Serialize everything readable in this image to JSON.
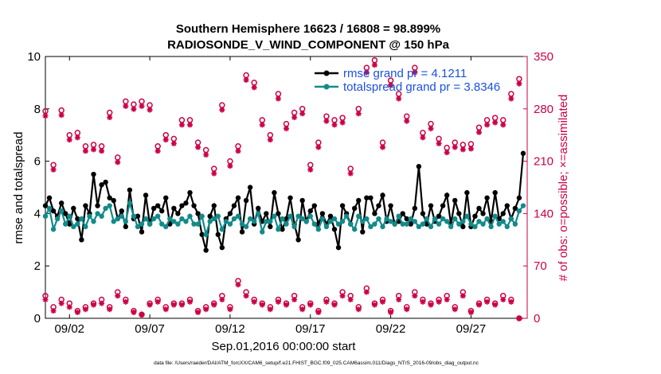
{
  "chart_data": {
    "type": "line",
    "title": "Southern Hemisphere 16623 / 16808 = 98.899%",
    "subtitle": "RADIOSONDE_V_WIND_COMPONENT @ 150 hPa",
    "xlabel": "Sep.01,2016 00:00:00 start",
    "ylabel": "rmse and totalspread",
    "ylabel_right": "# of obs: o=possible; ×=assimilated",
    "footer": "data file: /Users/raeder/DAI/ATM_forcXX/CAM6_setup/f.e21.FHIST_BGC.f09_025.CAM6assim.011/Diags_NTrS_2016-09/obs_diag_output.nc",
    "xlim": [
      0.5,
      30.5
    ],
    "ylim": [
      0,
      10
    ],
    "ylim_right": [
      0,
      350
    ],
    "x_ticks": [
      {
        "value": 2,
        "label": "09/02"
      },
      {
        "value": 7,
        "label": "09/07"
      },
      {
        "value": 12,
        "label": "09/12"
      },
      {
        "value": 17,
        "label": "09/17"
      },
      {
        "value": 22,
        "label": "09/22"
      },
      {
        "value": 27,
        "label": "09/27"
      }
    ],
    "y_ticks": [
      "0",
      "2",
      "4",
      "6",
      "8",
      "10"
    ],
    "y_ticks_right": [
      "0",
      "70",
      "140",
      "210",
      "280",
      "350"
    ],
    "legend": [
      {
        "label": "rmse grand pr = 4.1211",
        "color": "#000000"
      },
      {
        "label": "totalspread grand pr = 3.8346",
        "color": "#138a8a"
      }
    ],
    "series": [
      {
        "name": "rmse",
        "color": "#000000",
        "x": [
          0.5,
          0.75,
          1,
          1.25,
          1.5,
          1.75,
          2,
          2.25,
          2.5,
          2.75,
          3,
          3.25,
          3.5,
          3.75,
          4,
          4.25,
          4.5,
          4.75,
          5,
          5.25,
          5.5,
          5.75,
          6,
          6.25,
          6.5,
          6.75,
          7,
          7.25,
          7.5,
          7.75,
          8,
          8.25,
          8.5,
          8.75,
          9,
          9.25,
          9.5,
          9.75,
          10,
          10.25,
          10.5,
          10.75,
          11,
          11.25,
          11.5,
          11.75,
          12,
          12.25,
          12.5,
          12.75,
          13,
          13.25,
          13.5,
          13.75,
          14,
          14.25,
          14.5,
          14.75,
          15,
          15.25,
          15.5,
          15.75,
          16,
          16.25,
          16.5,
          16.75,
          17,
          17.25,
          17.5,
          17.75,
          18,
          18.25,
          18.5,
          18.75,
          19,
          19.25,
          19.5,
          19.75,
          20,
          20.25,
          20.5,
          20.75,
          21,
          21.25,
          21.5,
          21.75,
          22,
          22.25,
          22.5,
          22.75,
          23,
          23.25,
          23.5,
          23.75,
          24,
          24.25,
          24.5,
          24.75,
          25,
          25.25,
          25.5,
          25.75,
          26,
          26.25,
          26.5,
          26.75,
          27,
          27.25,
          27.5,
          27.75,
          28,
          28.25,
          28.5,
          28.75,
          29,
          29.25,
          29.5,
          29.75,
          30,
          30.25
        ],
        "values": [
          4.3,
          4.6,
          4.1,
          3.9,
          4.4,
          4.0,
          3.6,
          4.2,
          3.8,
          3.0,
          4.3,
          4.0,
          5.5,
          4.3,
          5.1,
          5.2,
          4.6,
          4.5,
          3.8,
          4.1,
          3.5,
          4.9,
          3.8,
          3.9,
          3.3,
          4.7,
          3.6,
          4.2,
          4.3,
          4.1,
          4.6,
          3.6,
          4.2,
          4.0,
          4.3,
          4.4,
          4.8,
          4.3,
          4.0,
          3.2,
          2.6,
          3.9,
          4.3,
          3.2,
          2.7,
          3.8,
          4.0,
          4.3,
          4.6,
          3.3,
          4.5,
          5.0,
          3.6,
          4.2,
          3.7,
          4.0,
          3.5,
          4.8,
          4.0,
          3.4,
          3.8,
          4.6,
          3.6,
          3.0,
          4.5,
          3.7,
          4.1,
          4.3,
          3.6,
          4.0,
          3.6,
          3.9,
          3.4,
          2.7,
          4.3,
          4.0,
          3.6,
          4.2,
          4.5,
          3.3,
          4.6,
          4.6,
          4.0,
          4.3,
          4.7,
          3.7,
          4.3,
          3.6,
          3.7,
          4.0,
          3.8,
          3.6,
          4.2,
          5.8,
          4.0,
          3.6,
          4.3,
          3.7,
          3.9,
          4.3,
          4.7,
          3.6,
          4.5,
          4.0,
          3.5,
          4.8,
          3.5,
          3.9,
          4.2,
          4.0,
          4.6,
          3.7,
          4.8,
          3.8,
          4.0,
          4.3,
          3.8,
          4.2,
          4.6,
          6.3
        ]
      },
      {
        "name": "totalspread",
        "color": "#138a8a",
        "x": [
          0.5,
          0.75,
          1,
          1.25,
          1.5,
          1.75,
          2,
          2.25,
          2.5,
          2.75,
          3,
          3.25,
          3.5,
          3.75,
          4,
          4.25,
          4.5,
          4.75,
          5,
          5.25,
          5.5,
          5.75,
          6,
          6.25,
          6.5,
          6.75,
          7,
          7.25,
          7.5,
          7.75,
          8,
          8.25,
          8.5,
          8.75,
          9,
          9.25,
          9.5,
          9.75,
          10,
          10.25,
          10.5,
          10.75,
          11,
          11.25,
          11.5,
          11.75,
          12,
          12.25,
          12.5,
          12.75,
          13,
          13.25,
          13.5,
          13.75,
          14,
          14.25,
          14.5,
          14.75,
          15,
          15.25,
          15.5,
          15.75,
          16,
          16.25,
          16.5,
          16.75,
          17,
          17.25,
          17.5,
          17.75,
          18,
          18.25,
          18.5,
          18.75,
          19,
          19.25,
          19.5,
          19.75,
          20,
          20.25,
          20.5,
          20.75,
          21,
          21.25,
          21.5,
          21.75,
          22,
          22.25,
          22.5,
          22.75,
          23,
          23.25,
          23.5,
          23.75,
          24,
          24.25,
          24.5,
          24.75,
          25,
          25.25,
          25.5,
          25.75,
          26,
          26.25,
          26.5,
          26.75,
          27,
          27.25,
          27.5,
          27.75,
          28,
          28.25,
          28.5,
          28.75,
          29,
          29.25,
          29.5,
          29.75,
          30,
          30.25
        ],
        "values": [
          3.9,
          4.2,
          3.4,
          3.8,
          4.1,
          3.6,
          3.9,
          3.5,
          3.6,
          3.8,
          3.5,
          3.9,
          3.7,
          4.0,
          3.9,
          4.2,
          4.3,
          3.7,
          3.8,
          3.9,
          3.7,
          4.4,
          3.9,
          3.5,
          3.6,
          3.8,
          3.6,
          3.8,
          3.9,
          3.6,
          3.5,
          3.8,
          3.7,
          3.6,
          3.8,
          3.7,
          3.9,
          3.6,
          3.6,
          3.9,
          3.2,
          3.7,
          3.8,
          3.9,
          3.4,
          3.7,
          3.6,
          3.8,
          3.9,
          3.6,
          3.5,
          3.8,
          3.7,
          4.0,
          3.3,
          3.7,
          3.7,
          3.9,
          3.4,
          3.8,
          3.6,
          3.9,
          3.5,
          3.9,
          3.8,
          3.7,
          3.9,
          3.6,
          3.4,
          3.8,
          3.5,
          3.7,
          3.8,
          3.6,
          3.7,
          3.9,
          3.6,
          3.4,
          3.9,
          3.7,
          3.8,
          3.5,
          3.6,
          3.8,
          3.5,
          3.8,
          3.7,
          3.6,
          3.9,
          3.6,
          3.6,
          3.8,
          3.7,
          3.5,
          3.6,
          3.8,
          3.5,
          3.8,
          3.6,
          3.8,
          3.7,
          3.5,
          3.8,
          3.6,
          3.7,
          3.9,
          3.6,
          3.5,
          3.7,
          3.6,
          3.8,
          3.5,
          3.9,
          3.6,
          3.7,
          3.5,
          3.8,
          3.6,
          4.1,
          4.3
        ]
      }
    ],
    "obs_counts": {
      "x": [
        0.5,
        1,
        1.5,
        2,
        2.5,
        3,
        3.5,
        4,
        4.5,
        5,
        5.5,
        6,
        6.5,
        7,
        7.5,
        8,
        8.5,
        9,
        9.5,
        10,
        10.5,
        11,
        11.5,
        12,
        12.5,
        13,
        13.5,
        14,
        14.5,
        15,
        15.5,
        16,
        16.5,
        17,
        17.5,
        18,
        18.5,
        19,
        19.5,
        20,
        20.5,
        21,
        21.5,
        22,
        22.5,
        23,
        23.5,
        24,
        24.5,
        25,
        25.5,
        26,
        26.5,
        27,
        27.5,
        28,
        28.5,
        29,
        29.5,
        30
      ],
      "possible": [
        30,
        15,
        25,
        20,
        10,
        15,
        20,
        25,
        15,
        35,
        25,
        10,
        5,
        20,
        25,
        15,
        20,
        20,
        25,
        10,
        15,
        20,
        30,
        15,
        50,
        35,
        25,
        20,
        15,
        25,
        20,
        30,
        15,
        20,
        10,
        25,
        20,
        35,
        30,
        15,
        40,
        20,
        25,
        10,
        30,
        15,
        35,
        25,
        20,
        25,
        30,
        15,
        35,
        10,
        20,
        25,
        20,
        30,
        25,
        0
      ],
      "assimilated": [
        25,
        10,
        20,
        15,
        8,
        12,
        18,
        20,
        12,
        30,
        22,
        8,
        5,
        18,
        22,
        12,
        18,
        18,
        22,
        8,
        12,
        18,
        25,
        12,
        45,
        30,
        22,
        18,
        12,
        22,
        18,
        25,
        12,
        18,
        8,
        22,
        18,
        30,
        25,
        12,
        35,
        18,
        22,
        8,
        25,
        12,
        30,
        22,
        18,
        22,
        25,
        12,
        30,
        8,
        18,
        22,
        18,
        25,
        22,
        0
      ],
      "possible_upper": [
        277,
        205,
        278,
        245,
        248,
        230,
        232,
        230,
        275,
        215,
        290,
        286,
        290,
        285,
        230,
        245,
        240,
        265,
        265,
        235,
        225,
        200,
        285,
        210,
        230,
        325,
        315,
        265,
        245,
        300,
        260,
        275,
        280,
        205,
        235,
        270,
        265,
        268,
        200,
        280,
        335,
        345,
        235,
        318,
        300,
        270,
        335,
        248,
        260,
        240,
        228,
        235,
        232,
        233,
        255,
        265,
        268,
        265,
        300,
        320
      ]
    },
    "obs_color": "#cc0044"
  }
}
